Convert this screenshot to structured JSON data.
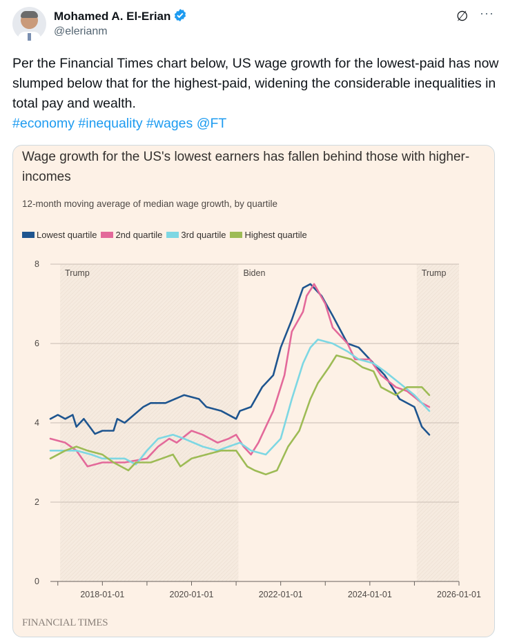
{
  "tweet": {
    "author_name": "Mohamed A. El-Erian",
    "handle": "@elerianm",
    "body": "Per the Financial Times chart below, US wage growth for the lowest-paid has now slumped below that for the highest-paid, widening the considerable inequalities in total pay and wealth.",
    "tags": [
      "#economy",
      "#inequality",
      "#wages",
      "@FT"
    ],
    "icons": [
      "verified-badge-icon",
      "grok-icon",
      "more-icon"
    ],
    "accent_color": "#1d9bf0"
  },
  "chart_data": {
    "type": "line",
    "title": "Wage growth for the US's lowest earners has fallen behind those with higher-incomes",
    "subtitle": "12-month moving average of median wage growth, by quartile",
    "source": "FINANCIAL TIMES",
    "xlim": [
      "2016-11",
      "2026-01"
    ],
    "ylim": [
      0,
      8
    ],
    "y_ticks": [
      "0",
      "2",
      "4",
      "6",
      "8"
    ],
    "x_ticks": [
      "2018-01-01",
      "2020-01-01",
      "2022-01-01",
      "2024-01-01",
      "2026-01-01"
    ],
    "grid": "horizontal",
    "legend": "top-left",
    "periods": [
      {
        "label": "Trump",
        "start": "2017-01-20",
        "end": "2021-01-20",
        "shaded": true
      },
      {
        "label": "Biden",
        "start": "2021-01-20",
        "end": "2025-01-20",
        "shaded": false
      },
      {
        "label": "Trump",
        "start": "2025-01-20",
        "end": "2026-01-01",
        "shaded": true
      }
    ],
    "series": [
      {
        "name": "Lowest quartile",
        "color": "#1e558f",
        "points": [
          [
            "2016-11",
            4.1
          ],
          [
            "2017-01",
            4.2
          ],
          [
            "2017-03",
            4.1
          ],
          [
            "2017-05",
            4.2
          ],
          [
            "2017-06",
            3.9
          ],
          [
            "2017-08",
            4.1
          ],
          [
            "2017-11",
            3.72
          ],
          [
            "2018-01",
            3.8
          ],
          [
            "2018-04",
            3.8
          ],
          [
            "2018-05",
            4.1
          ],
          [
            "2018-07",
            4.0
          ],
          [
            "2018-12",
            4.4
          ],
          [
            "2019-02",
            4.5
          ],
          [
            "2019-06",
            4.5
          ],
          [
            "2019-11",
            4.7
          ],
          [
            "2020-03",
            4.6
          ],
          [
            "2020-05",
            4.4
          ],
          [
            "2020-09",
            4.3
          ],
          [
            "2021-01",
            4.1
          ],
          [
            "2021-02",
            4.3
          ],
          [
            "2021-05",
            4.4
          ],
          [
            "2021-08",
            4.9
          ],
          [
            "2021-11",
            5.2
          ],
          [
            "2022-01",
            5.9
          ],
          [
            "2022-04",
            6.6
          ],
          [
            "2022-07",
            7.4
          ],
          [
            "2022-09",
            7.5
          ],
          [
            "2022-12",
            7.2
          ],
          [
            "2023-03",
            6.7
          ],
          [
            "2023-07",
            6.0
          ],
          [
            "2023-10",
            5.9
          ],
          [
            "2024-02",
            5.5
          ],
          [
            "2024-05",
            5.2
          ],
          [
            "2024-09",
            4.6
          ],
          [
            "2025-01",
            4.4
          ],
          [
            "2025-03",
            3.9
          ],
          [
            "2025-05",
            3.7
          ]
        ]
      },
      {
        "name": "2nd quartile",
        "color": "#e3699a",
        "points": [
          [
            "2016-11",
            3.6
          ],
          [
            "2017-03",
            3.5
          ],
          [
            "2017-06",
            3.3
          ],
          [
            "2017-09",
            2.9
          ],
          [
            "2018-01",
            3.0
          ],
          [
            "2018-07",
            3.0
          ],
          [
            "2019-01",
            3.1
          ],
          [
            "2019-04",
            3.4
          ],
          [
            "2019-07",
            3.6
          ],
          [
            "2019-09",
            3.5
          ],
          [
            "2020-01",
            3.8
          ],
          [
            "2020-04",
            3.7
          ],
          [
            "2020-08",
            3.5
          ],
          [
            "2020-11",
            3.6
          ],
          [
            "2021-01",
            3.7
          ],
          [
            "2021-03",
            3.4
          ],
          [
            "2021-05",
            3.2
          ],
          [
            "2021-07",
            3.5
          ],
          [
            "2021-09",
            3.9
          ],
          [
            "2021-11",
            4.3
          ],
          [
            "2022-02",
            5.2
          ],
          [
            "2022-04",
            6.3
          ],
          [
            "2022-07",
            6.8
          ],
          [
            "2022-08",
            7.2
          ],
          [
            "2022-10",
            7.5
          ],
          [
            "2023-01",
            7.0
          ],
          [
            "2023-03",
            6.4
          ],
          [
            "2023-07",
            6.0
          ],
          [
            "2023-09",
            5.6
          ],
          [
            "2024-01",
            5.6
          ],
          [
            "2024-04",
            5.2
          ],
          [
            "2024-08",
            4.9
          ],
          [
            "2024-11",
            4.8
          ],
          [
            "2025-03",
            4.5
          ],
          [
            "2025-05",
            4.4
          ]
        ]
      },
      {
        "name": "3rd quartile",
        "color": "#7dd7e3",
        "points": [
          [
            "2016-11",
            3.3
          ],
          [
            "2017-03",
            3.3
          ],
          [
            "2017-06",
            3.3
          ],
          [
            "2017-10",
            3.2
          ],
          [
            "2018-01",
            3.1
          ],
          [
            "2018-07",
            3.1
          ],
          [
            "2018-10",
            2.95
          ],
          [
            "2019-01",
            3.3
          ],
          [
            "2019-04",
            3.6
          ],
          [
            "2019-08",
            3.7
          ],
          [
            "2019-11",
            3.6
          ],
          [
            "2020-04",
            3.4
          ],
          [
            "2020-08",
            3.3
          ],
          [
            "2020-11",
            3.4
          ],
          [
            "2021-02",
            3.5
          ],
          [
            "2021-05",
            3.3
          ],
          [
            "2021-09",
            3.2
          ],
          [
            "2022-01",
            3.6
          ],
          [
            "2022-04",
            4.6
          ],
          [
            "2022-07",
            5.5
          ],
          [
            "2022-09",
            5.9
          ],
          [
            "2022-11",
            6.1
          ],
          [
            "2023-03",
            6.0
          ],
          [
            "2023-07",
            5.8
          ],
          [
            "2023-10",
            5.6
          ],
          [
            "2024-02",
            5.5
          ],
          [
            "2024-05",
            5.3
          ],
          [
            "2024-09",
            5.0
          ],
          [
            "2025-01",
            4.7
          ],
          [
            "2025-03",
            4.5
          ],
          [
            "2025-05",
            4.3
          ]
        ]
      },
      {
        "name": "Highest quartile",
        "color": "#9dbb55",
        "points": [
          [
            "2016-11",
            3.1
          ],
          [
            "2017-03",
            3.3
          ],
          [
            "2017-06",
            3.4
          ],
          [
            "2017-09",
            3.3
          ],
          [
            "2018-01",
            3.2
          ],
          [
            "2018-04",
            3.0
          ],
          [
            "2018-08",
            2.8
          ],
          [
            "2018-10",
            3.0
          ],
          [
            "2019-02",
            3.0
          ],
          [
            "2019-05",
            3.1
          ],
          [
            "2019-08",
            3.2
          ],
          [
            "2019-10",
            2.9
          ],
          [
            "2020-01",
            3.1
          ],
          [
            "2020-05",
            3.2
          ],
          [
            "2020-09",
            3.3
          ],
          [
            "2021-01",
            3.3
          ],
          [
            "2021-04",
            2.9
          ],
          [
            "2021-06",
            2.8
          ],
          [
            "2021-09",
            2.7
          ],
          [
            "2021-12",
            2.8
          ],
          [
            "2022-03",
            3.4
          ],
          [
            "2022-06",
            3.8
          ],
          [
            "2022-09",
            4.6
          ],
          [
            "2022-11",
            5.0
          ],
          [
            "2023-02",
            5.4
          ],
          [
            "2023-04",
            5.7
          ],
          [
            "2023-08",
            5.6
          ],
          [
            "2023-11",
            5.4
          ],
          [
            "2024-02",
            5.3
          ],
          [
            "2024-04",
            4.9
          ],
          [
            "2024-08",
            4.7
          ],
          [
            "2024-11",
            4.9
          ],
          [
            "2025-03",
            4.9
          ],
          [
            "2025-05",
            4.7
          ]
        ]
      }
    ]
  }
}
